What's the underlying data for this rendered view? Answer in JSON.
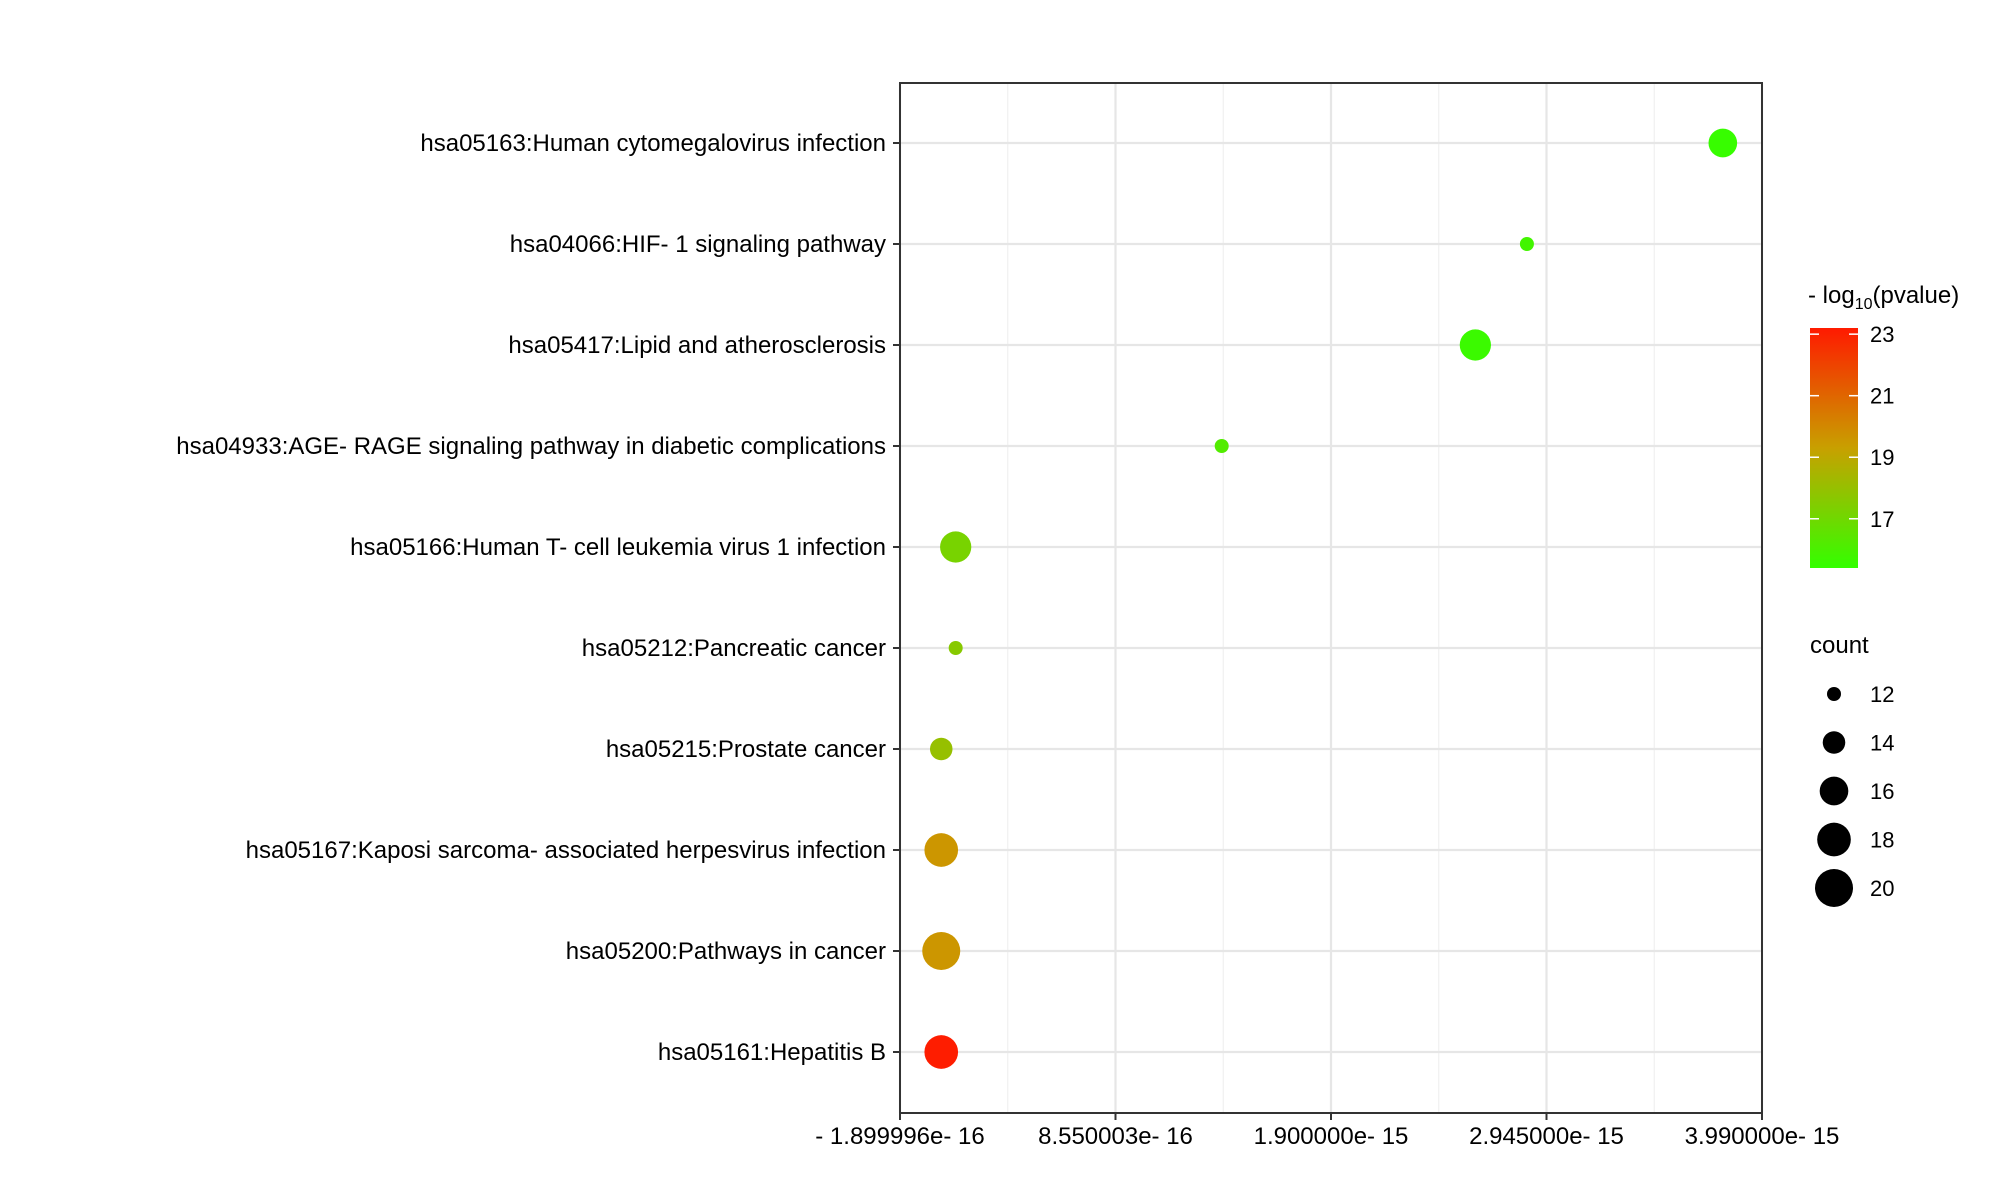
{
  "chart_data": {
    "type": "scatter",
    "title": "",
    "xlabel": "",
    "ylabel": "",
    "x_ticks": [
      "- 1.899996e- 16",
      "8.550003e- 16",
      "1.900000e- 15",
      "2.945000e- 15",
      "3.990000e- 15"
    ],
    "x_tick_values": [
      -1.899996e-16,
      8.550003e-16,
      1.9e-15,
      2.945e-15,
      3.99e-15
    ],
    "xlim": [
      -1.899996e-16,
      3.99e-15
    ],
    "grid": true,
    "categories": [
      "hsa05163:Human cytomegalovirus infection",
      "hsa04066:HIF- 1 signaling pathway",
      "hsa05417:Lipid and atherosclerosis",
      "hsa04933:AGE- RAGE signaling pathway in diabetic complications",
      "hsa05166:Human T- cell leukemia virus 1 infection",
      "hsa05212:Pancreatic cancer",
      "hsa05215:Prostate cancer",
      "hsa05167:Kaposi sarcoma- associated herpesvirus infection",
      "hsa05200:Pathways in cancer",
      "hsa05161:Hepatitis B"
    ],
    "points": [
      {
        "x": 3.8e-15,
        "count": 16,
        "neglog10p": 15.5
      },
      {
        "x": 2.85e-15,
        "count": 12,
        "neglog10p": 15.8
      },
      {
        "x": 2.6e-15,
        "count": 17,
        "neglog10p": 15.6
      },
      {
        "x": 1.37e-15,
        "count": 12,
        "neglog10p": 16.2
      },
      {
        "x": 8e-17,
        "count": 17,
        "neglog10p": 17.2
      },
      {
        "x": 8e-17,
        "count": 12,
        "neglog10p": 17.6
      },
      {
        "x": 1e-17,
        "count": 14,
        "neglog10p": 18.0
      },
      {
        "x": 1e-17,
        "count": 18,
        "neglog10p": 19.6
      },
      {
        "x": 1e-17,
        "count": 20,
        "neglog10p": 19.6
      },
      {
        "x": 1e-17,
        "count": 18,
        "neglog10p": 23.1
      }
    ],
    "color_legend": {
      "title_prefix": "- log",
      "title_sub": "10",
      "title_suffix": "(pvalue)",
      "ticks": [
        "23",
        "21",
        "19",
        "17"
      ],
      "tick_values": [
        23,
        21,
        19,
        17
      ],
      "range": [
        15.4,
        23.2
      ],
      "color_low": "#33ff00",
      "color_mid": "#c8a000",
      "color_high": "#ff1a00"
    },
    "size_legend": {
      "title": "count",
      "labels": [
        "12",
        "14",
        "16",
        "18",
        "20"
      ],
      "values": [
        12,
        14,
        16,
        18,
        20
      ]
    },
    "legend_position": "right"
  }
}
